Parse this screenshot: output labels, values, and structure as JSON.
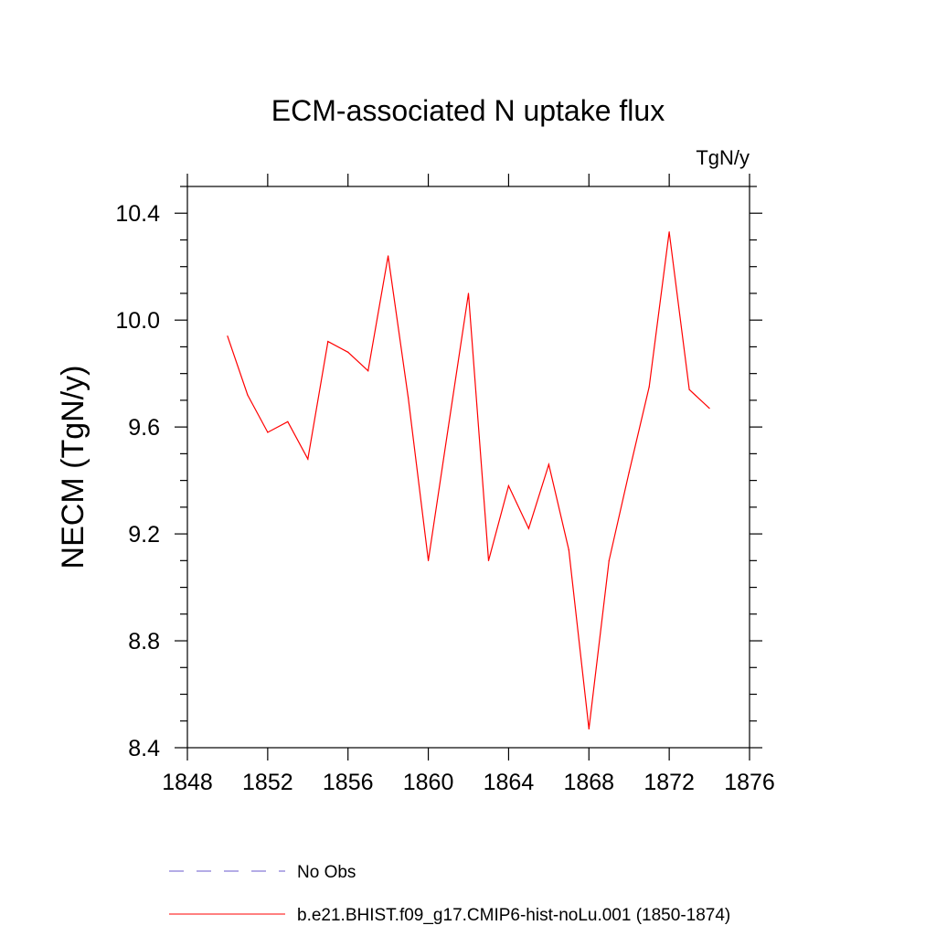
{
  "chart_data": {
    "type": "line",
    "title": "ECM-associated N uptake flux",
    "units": "TgN/y",
    "xlabel": "",
    "ylabel": "NECM  (TgN/y)",
    "xlim": [
      1848,
      1876
    ],
    "ylim": [
      8.4,
      10.5
    ],
    "x_ticks": [
      "1848",
      "1852",
      "1856",
      "1860",
      "1864",
      "1868",
      "1872",
      "1876"
    ],
    "y_ticks": [
      "8.4",
      "8.8",
      "9.2",
      "9.6",
      "10.0",
      "10.4"
    ],
    "grid": false,
    "series": [
      {
        "name": "b.e21.BHIST.f09_g17.CMIP6-hist-noLu.001 (1850-1874)",
        "color": "#ff0000",
        "style": "solid",
        "x": [
          1850,
          1851,
          1852,
          1853,
          1854,
          1855,
          1856,
          1857,
          1858,
          1859,
          1860,
          1861,
          1862,
          1863,
          1864,
          1865,
          1866,
          1867,
          1868,
          1869,
          1870,
          1871,
          1872,
          1873,
          1874
        ],
        "y": [
          9.94,
          9.72,
          9.58,
          9.62,
          9.48,
          9.92,
          9.88,
          9.81,
          10.24,
          9.71,
          9.1,
          9.6,
          10.1,
          9.1,
          9.38,
          9.22,
          9.46,
          9.14,
          8.47,
          9.1,
          9.43,
          9.75,
          10.33,
          9.74,
          9.67
        ]
      }
    ],
    "legend": [
      {
        "label": "No Obs",
        "color": "#6a5acd",
        "style": "dashed"
      },
      {
        "label": "b.e21.BHIST.f09_g17.CMIP6-hist-noLu.001 (1850-1874)",
        "color": "#ff0000",
        "style": "solid"
      }
    ],
    "legend_position": "bottom"
  }
}
